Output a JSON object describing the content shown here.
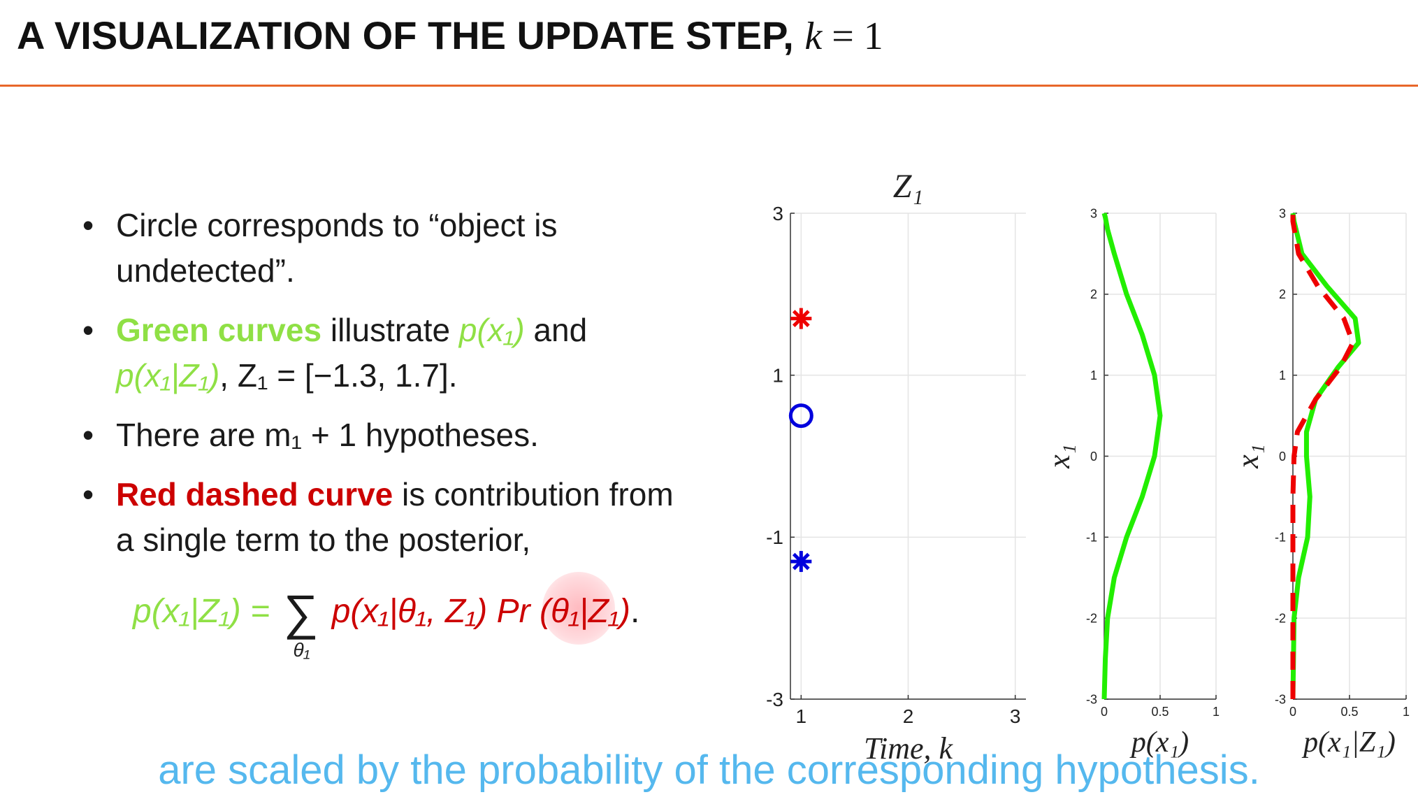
{
  "slide": {
    "title": "A VISUALIZATION OF THE UPDATE STEP,",
    "title_math": "k = 1",
    "bullets": [
      {
        "parts": [
          "Circle corresponds to “object is",
          "undetected”."
        ]
      },
      {
        "green_label": "Green curves",
        "text1": " illustrate ",
        "p1": "p(x₁)",
        "text2": " and",
        "p2": "p(x₁|Z₁)",
        "text3": ", Z₁ = [−1.3, 1.7]."
      },
      {
        "text": "There are m₁ + 1 hypotheses."
      },
      {
        "red_label": "Red dashed curve",
        "text1": " is contribution from",
        "text2": "a single term to the posterior,"
      }
    ],
    "formula": {
      "lhs": "p(x₁|Z₁) =",
      "sum": "∑",
      "sum_sub": "θ₁",
      "term": "p(x₁|θ₁, Z₁) Pr (θ₁|Z₁)",
      "end": "."
    },
    "caption": "are scaled by the probability of the corresponding hypothesis.",
    "colors": {
      "accent_rule": "#e8672a",
      "green": "#8fe045",
      "red": "#cc0000",
      "caption": "#55b8ee",
      "blue": "#0000dd"
    }
  },
  "chart_data": [
    {
      "type": "scatter",
      "title": "Z₁",
      "xlabel": "Time, k",
      "ylabel": "",
      "xlim": [
        0.9,
        3.1
      ],
      "ylim": [
        -3,
        3
      ],
      "xticks": [
        "1",
        "2",
        "3"
      ],
      "yticks": [
        "3",
        "1",
        "-1",
        "-3"
      ],
      "grid": true,
      "series": [
        {
          "marker": "asterisk",
          "color": "#ee0000",
          "x": [
            1
          ],
          "y": [
            1.7
          ]
        },
        {
          "marker": "circle",
          "color": "#0000dd",
          "x": [
            1
          ],
          "y": [
            0.5
          ]
        },
        {
          "marker": "asterisk",
          "color": "#0000dd",
          "x": [
            1
          ],
          "y": [
            -1.3
          ]
        }
      ]
    },
    {
      "type": "line",
      "title": "",
      "xlabel": "p(x₁)",
      "ylabel": "x₁",
      "xlim": [
        0,
        1
      ],
      "ylim": [
        -3,
        3
      ],
      "xticks": [
        "0",
        "0.5",
        "1"
      ],
      "yticks": [
        "3",
        "2",
        "1",
        "0",
        "-1",
        "-2",
        "-3"
      ],
      "grid": true,
      "series": [
        {
          "style": "solid",
          "color": "#22ee00",
          "x": [
            0.0,
            0.01,
            0.03,
            0.09,
            0.2,
            0.34,
            0.45,
            0.5,
            0.45,
            0.34,
            0.2,
            0.09,
            0.03,
            0.01,
            0.0
          ],
          "y": [
            -3.0,
            -2.5,
            -2.0,
            -1.5,
            -1.0,
            -0.5,
            0.0,
            0.5,
            1.0,
            1.5,
            2.0,
            2.5,
            2.8,
            2.95,
            3.0
          ]
        }
      ]
    },
    {
      "type": "line",
      "title": "",
      "xlabel": "p(x₁|Z₁)",
      "ylabel": "x₁",
      "xlim": [
        0,
        1
      ],
      "ylim": [
        -3,
        3
      ],
      "xticks": [
        "0",
        "0.5",
        "1"
      ],
      "yticks": [
        "3",
        "2",
        "1",
        "0",
        "-1",
        "-2",
        "-3"
      ],
      "grid": true,
      "series": [
        {
          "style": "solid",
          "color": "#22ee00",
          "x": [
            0.0,
            0.01,
            0.05,
            0.13,
            0.15,
            0.12,
            0.12,
            0.2,
            0.4,
            0.58,
            0.55,
            0.3,
            0.08,
            0.01,
            0.0
          ],
          "y": [
            -3.0,
            -2.0,
            -1.5,
            -1.0,
            -0.5,
            0.0,
            0.3,
            0.7,
            1.1,
            1.4,
            1.7,
            2.1,
            2.5,
            2.9,
            3.0
          ]
        },
        {
          "style": "dashed",
          "color": "#ee0000",
          "x": [
            0.0,
            0.0,
            0.0,
            0.0,
            0.0,
            0.01,
            0.04,
            0.2,
            0.42,
            0.53,
            0.45,
            0.22,
            0.05,
            0.0,
            0.0
          ],
          "y": [
            -3.0,
            -2.0,
            -1.5,
            -1.0,
            -0.5,
            0.0,
            0.3,
            0.7,
            1.1,
            1.4,
            1.7,
            2.1,
            2.5,
            2.9,
            3.0
          ]
        }
      ]
    }
  ]
}
